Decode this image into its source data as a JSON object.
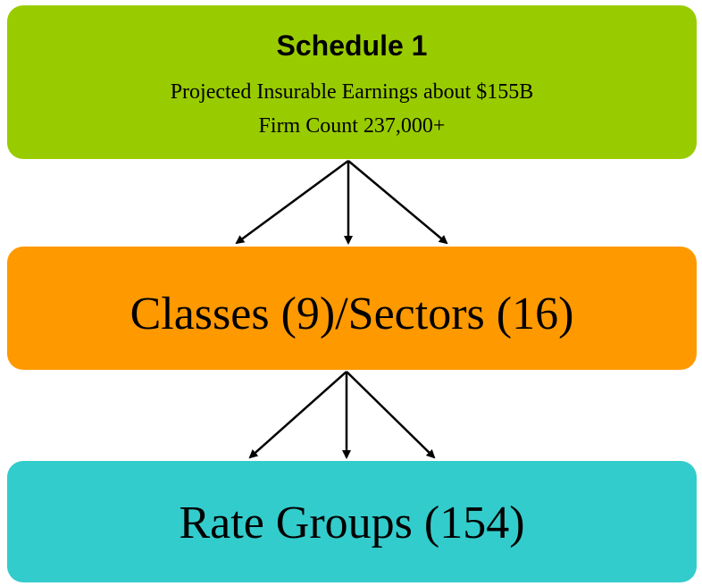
{
  "nodes": [
    {
      "title": "Schedule 1",
      "lines": [
        "Projected Insurable Earnings about $155B",
        "Firm Count 237,000+"
      ]
    },
    {
      "label": "Classes (9)/Sectors (16)"
    },
    {
      "label": "Rate Groups (154)"
    }
  ]
}
